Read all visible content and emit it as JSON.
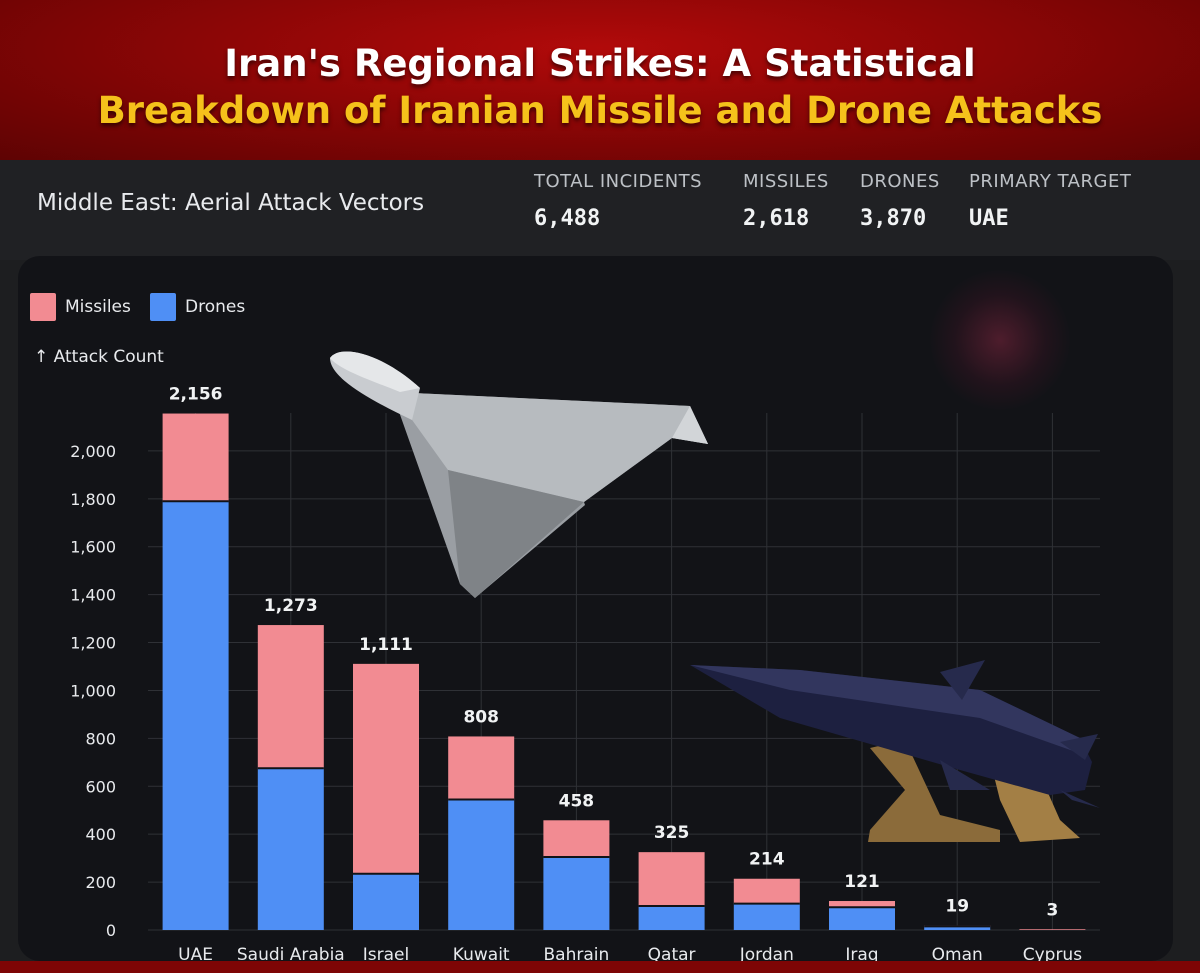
{
  "header": {
    "line1": "Iran's Regional Strikes: A Statistical",
    "line2": "Breakdown of Iranian Missile and Drone Attacks"
  },
  "dashboard": {
    "title": "Middle East: Aerial Attack Vectors",
    "stats": [
      {
        "label": "TOTAL INCIDENTS",
        "value": "6,488"
      },
      {
        "label": "MISSILES",
        "value": "2,618"
      },
      {
        "label": "DRONES",
        "value": "3,870"
      },
      {
        "label": "PRIMARY TARGET",
        "value": "UAE"
      }
    ]
  },
  "legend": {
    "missiles": "Missiles",
    "drones": "Drones"
  },
  "colors": {
    "missiles": "#f28b92",
    "drones": "#4f8ff5",
    "grid": "#2f3136"
  },
  "icons": {
    "drone": "shahed-drone-icon",
    "missile": "ballistic-missile-icon",
    "arrow": "arrow-up-icon"
  },
  "chart_data": {
    "type": "bar",
    "stacked": true,
    "ylabel": "Attack Count",
    "ylim": [
      0,
      2200
    ],
    "yticks": [
      "0",
      "200",
      "400",
      "600",
      "800",
      "1,000",
      "1,200",
      "1,400",
      "1,600",
      "1,800",
      "2,000"
    ],
    "categories": [
      "UAE",
      "Saudi Arabia",
      "Israel",
      "Kuwait",
      "Bahrain",
      "Qatar",
      "Jordan",
      "Iraq",
      "Oman",
      "Cyprus"
    ],
    "totals": [
      "2,156",
      "1,273",
      "1,111",
      "808",
      "458",
      "325",
      "214",
      "121",
      "19",
      "3"
    ],
    "series": [
      {
        "name": "Drones",
        "values": [
          1790,
          675,
          235,
          545,
          305,
          100,
          110,
          95,
          15,
          0
        ]
      },
      {
        "name": "Missiles",
        "values": [
          366,
          598,
          876,
          263,
          153,
          225,
          104,
          26,
          4,
          3
        ]
      }
    ],
    "grid": true,
    "legend_position": "top-left"
  }
}
